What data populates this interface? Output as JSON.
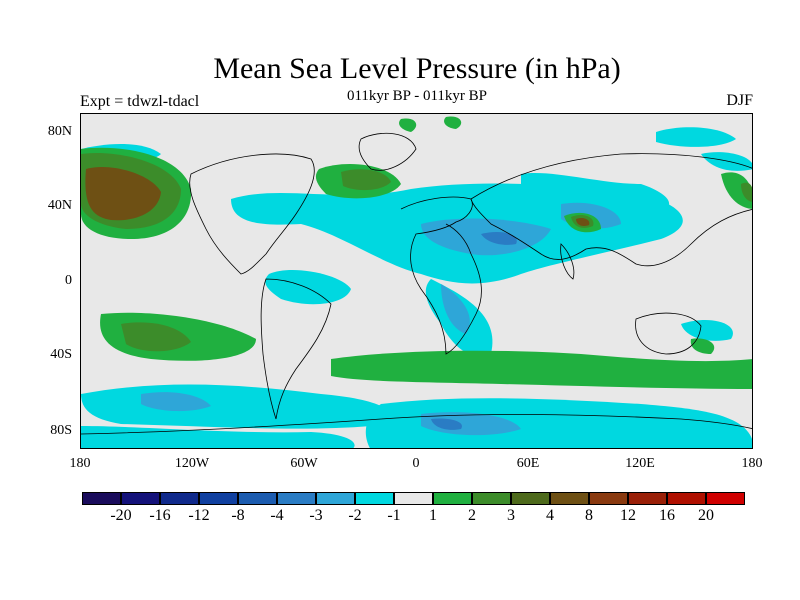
{
  "title": "Mean Sea Level Pressure (in hPa)",
  "subtitle": "011kyr BP - 011kyr BP",
  "experiment": "Expt = tdwzl-tdacl",
  "season": "DJF",
  "map": {
    "lat_labels": [
      "80N",
      "40N",
      "0",
      "40S",
      "80S"
    ],
    "lon_labels": [
      "180",
      "120W",
      "60W",
      "0",
      "60E",
      "120E",
      "180"
    ]
  },
  "colorbar": {
    "colors": [
      "#1a0c5c",
      "#14127a",
      "#102a8c",
      "#1040a0",
      "#1c5cb0",
      "#2a7cc4",
      "#2ea6d8",
      "#00d8e0",
      "#e8e8e8",
      "#20b040",
      "#3c8c2a",
      "#4e6a1c",
      "#6e5014",
      "#8a3a10",
      "#9a2008",
      "#b01000",
      "#d00000"
    ],
    "labels": [
      "-20",
      "-16",
      "-12",
      "-8",
      "-4",
      "-3",
      "-2",
      "-1",
      "1",
      "2",
      "3",
      "4",
      "8",
      "12",
      "16",
      "20"
    ]
  },
  "colors": {
    "background": "#e8e8e8",
    "neg1": "#00d8e0",
    "neg2": "#2ea6d8",
    "neg3": "#2a7cc4",
    "pos1": "#20b040",
    "pos2": "#3c8c2a",
    "pos3": "#4e6a1c",
    "pos4": "#6e5014"
  }
}
